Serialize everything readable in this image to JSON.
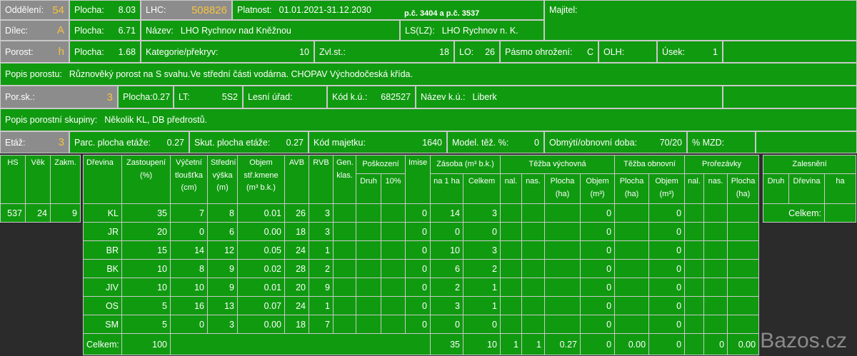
{
  "fields": [
    {
      "label": "Oddělení:",
      "value": "54"
    },
    {
      "label": "Plocha:",
      "value": "8.03"
    },
    {
      "label": "LHC:",
      "value": "508826"
    },
    {
      "label": "Platnost:",
      "value": "01.01.2021-31.12.2030",
      "note": "p.č. 3404 a p.č. 3537"
    },
    {
      "label": "Majitel:"
    },
    {
      "label": "Dílec:",
      "value": "A"
    },
    {
      "label": "Plocha:",
      "value": "6.71"
    },
    {
      "label": "Název:",
      "value": "LHO Rychnov nad Kněžnou"
    },
    {
      "label": "LS(LZ):",
      "value": "LHO Rychnov n. K."
    },
    {
      "label": "Porost:",
      "value": "h"
    },
    {
      "label": "Plocha:",
      "value": "1.68"
    },
    {
      "label": "Kategorie/překryv:",
      "value": "10"
    },
    {
      "label": "Zvl.st.:",
      "value": "18"
    },
    {
      "label": "LO:",
      "value": "26"
    },
    {
      "label": "Pásmo ohrožení:",
      "value": "C"
    },
    {
      "label": "OLH:"
    },
    {
      "label": "Úsek:",
      "value": "1"
    },
    {
      "label": "Popis porostu:",
      "value": "Různověký porost na S svahu.Ve střední části vodárna. CHOPAV Východočeská křída."
    },
    {
      "label": "Por.sk.:",
      "value": "3"
    },
    {
      "label": "Plocha:",
      "value": "0.27"
    },
    {
      "label": "LT:",
      "value": "5S2"
    },
    {
      "label": "Lesní úřad:"
    },
    {
      "label": "Kód k.ú.:",
      "value": "682527"
    },
    {
      "label": "Název k.ú.:",
      "value": "Liberk"
    },
    {
      "label": "Popis porostní skupiny:",
      "value": "Několik KL, DB předrostů."
    },
    {
      "label": "Etáž:",
      "value": "3"
    },
    {
      "label": "Parc. plocha etáže:",
      "value": "0.27"
    },
    {
      "label": "Skut. plocha etáže:",
      "value": "0.27"
    },
    {
      "label": "Kód majetku:",
      "value": "1640"
    },
    {
      "label": "Model. těž. %:",
      "value": "0"
    },
    {
      "label": "Obmýtí/obnovní doba:",
      "value": "70/20"
    },
    {
      "label": "% MZD:"
    }
  ],
  "age": {
    "columns": [
      "HS",
      "Věk",
      "Zakm."
    ],
    "values": [
      "537",
      "24",
      "9"
    ]
  },
  "main": {
    "columns": [
      {
        "label": "Dřevina"
      },
      {
        "label": "Zastoupení (%)"
      },
      {
        "label": "Výčetní tloušťka (cm)"
      },
      {
        "label": "Střední výška (m)"
      },
      {
        "label": "Objem stř.kmene (m³ b.k.)"
      },
      {
        "label": "AVB"
      },
      {
        "label": "RVB"
      },
      {
        "label": "Gen. klas."
      },
      {
        "label": "Poškození",
        "sub": [
          "Druh",
          "10%"
        ]
      },
      {
        "label": "Imise"
      },
      {
        "label": "Zásoba (m³ b.k.)",
        "sub": [
          "na 1 ha",
          "Celkem"
        ]
      },
      {
        "label": "Těžba výchovná",
        "sub": [
          "nal.",
          "nas.",
          "Plocha (ha)",
          "Objem (m³)"
        ]
      },
      {
        "label": "Těžba obnovní",
        "sub": [
          "Plocha (ha)",
          "Objem (m³)"
        ]
      },
      {
        "label": "Prořezávky",
        "sub": [
          "nal.",
          "nas.",
          "Plocha (ha)"
        ]
      }
    ],
    "rows": [
      [
        "KL",
        "35",
        "7",
        "8",
        "0.01",
        "26",
        "3",
        null,
        null,
        null,
        "0",
        "14",
        "3",
        null,
        null,
        null,
        "0",
        null,
        "0",
        null,
        null,
        null
      ],
      [
        "JR",
        "20",
        "0",
        "6",
        "0.00",
        "18",
        "3",
        null,
        null,
        null,
        "0",
        "0",
        "0",
        null,
        null,
        null,
        "0",
        null,
        "0",
        null,
        null,
        null
      ],
      [
        "BR",
        "15",
        "14",
        "12",
        "0.05",
        "24",
        "1",
        null,
        null,
        null,
        "0",
        "10",
        "3",
        null,
        null,
        null,
        "0",
        null,
        "0",
        null,
        null,
        null
      ],
      [
        "BK",
        "10",
        "8",
        "9",
        "0.02",
        "28",
        "2",
        null,
        null,
        null,
        "0",
        "6",
        "2",
        null,
        null,
        null,
        "0",
        null,
        "0",
        null,
        null,
        null
      ],
      [
        "JIV",
        "10",
        "10",
        "9",
        "0.01",
        "20",
        "9",
        null,
        null,
        null,
        "0",
        "2",
        "1",
        null,
        null,
        null,
        "0",
        null,
        "0",
        null,
        null,
        null
      ],
      [
        "OS",
        "5",
        "16",
        "13",
        "0.07",
        "24",
        "1",
        null,
        null,
        null,
        "0",
        "3",
        "1",
        null,
        null,
        null,
        "0",
        null,
        "0",
        null,
        null,
        null
      ],
      [
        "SM",
        "5",
        "0",
        "3",
        "0.00",
        "18",
        "7",
        null,
        null,
        null,
        "0",
        "0",
        "0",
        null,
        null,
        null,
        "0",
        null,
        "0",
        null,
        null,
        null
      ]
    ],
    "total": [
      "Celkem:",
      "100",
      null,
      null,
      null,
      null,
      null,
      null,
      null,
      null,
      null,
      "35",
      "10",
      "1",
      "1",
      "0.27",
      "0",
      "0.00",
      "0",
      null,
      "0",
      "0.00"
    ]
  },
  "zalesneni": {
    "title": "Zalesnění",
    "columns": [
      "Druh",
      "Dřevina",
      "ha"
    ],
    "total": "Celkem:"
  },
  "watermark": "Bazos.cz"
}
